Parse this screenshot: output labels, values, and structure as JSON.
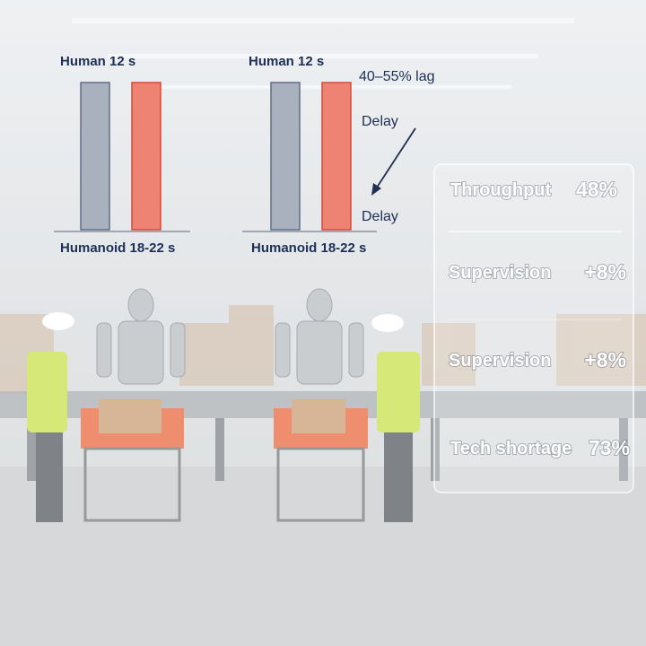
{
  "comparisons": [
    {
      "top_label": "Human 12 s",
      "bottom_label": "Humanoid 18-22 s"
    },
    {
      "top_label": "Human 12 s",
      "bottom_label": "Humanoid 18-22 s",
      "lag": "40–55% lag",
      "delay_top": "Delay",
      "delay_bottom": "Delay"
    }
  ],
  "stats": [
    {
      "label": "Throughput",
      "value": "48%"
    },
    {
      "label": "Supervision",
      "value": "+8%"
    },
    {
      "label": "Supervision",
      "value": "+8%"
    },
    {
      "label": "Tech shortage",
      "value": "73%"
    }
  ]
}
